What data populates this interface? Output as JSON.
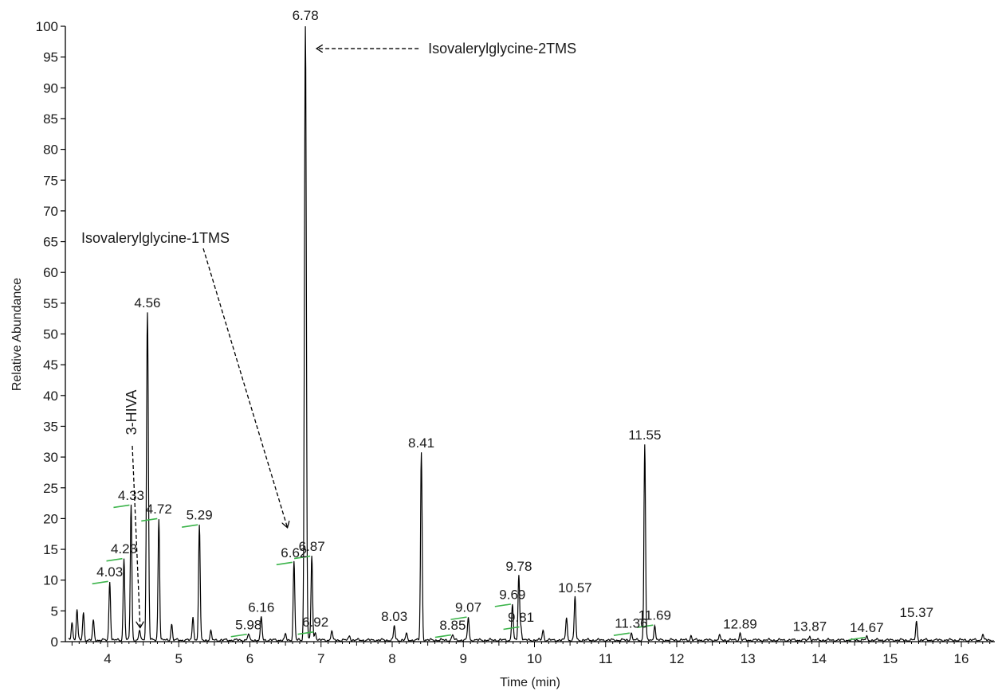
{
  "chart_data": {
    "type": "line",
    "xlabel": "Time (min)",
    "ylabel": "Relative Abundance",
    "xlim": [
      3.4,
      16.5
    ],
    "ylim": [
      0,
      100
    ],
    "x_ticks": [
      4,
      5,
      6,
      7,
      8,
      9,
      10,
      11,
      12,
      13,
      14,
      15,
      16
    ],
    "y_ticks": [
      0,
      5,
      10,
      15,
      20,
      25,
      30,
      35,
      40,
      45,
      50,
      55,
      60,
      65,
      70,
      75,
      80,
      85,
      90,
      95,
      100
    ],
    "line_color": "#000000",
    "integration_mark_color": "#3cb44b",
    "peaks": [
      {
        "x": 3.5,
        "y": 3.0
      },
      {
        "x": 3.57,
        "y": 5.0
      },
      {
        "x": 3.66,
        "y": 4.5
      },
      {
        "x": 3.8,
        "y": 3.2
      },
      {
        "x": 4.03,
        "y": 9.6,
        "label": "4.03",
        "mark": true
      },
      {
        "x": 4.23,
        "y": 13.3,
        "label": "4.23",
        "mark": true
      },
      {
        "x": 4.33,
        "y": 22.0,
        "label": "4.33",
        "mark": true
      },
      {
        "x": 4.45,
        "y": 1.6
      },
      {
        "x": 4.56,
        "y": 53.3,
        "label": "4.56"
      },
      {
        "x": 4.72,
        "y": 19.8,
        "label": "4.72",
        "mark": true
      },
      {
        "x": 4.9,
        "y": 2.6
      },
      {
        "x": 5.2,
        "y": 3.8
      },
      {
        "x": 5.29,
        "y": 18.8,
        "label": "5.29",
        "mark": true
      },
      {
        "x": 5.45,
        "y": 1.4
      },
      {
        "x": 5.98,
        "y": 1.0,
        "label": "5.98",
        "mark": true
      },
      {
        "x": 6.16,
        "y": 3.8,
        "label": "6.16"
      },
      {
        "x": 6.5,
        "y": 0.9
      },
      {
        "x": 6.62,
        "y": 12.7,
        "label": "6.62",
        "mark": true
      },
      {
        "x": 6.78,
        "y": 100.0,
        "label": "6.78"
      },
      {
        "x": 6.87,
        "y": 13.7,
        "label": "6.87",
        "mark": true
      },
      {
        "x": 6.92,
        "y": 1.4,
        "label": "6.92",
        "mark": true
      },
      {
        "x": 7.15,
        "y": 1.5
      },
      {
        "x": 7.4,
        "y": 0.8
      },
      {
        "x": 8.03,
        "y": 2.3,
        "label": "8.03"
      },
      {
        "x": 8.2,
        "y": 1.0
      },
      {
        "x": 8.41,
        "y": 30.5,
        "label": "8.41"
      },
      {
        "x": 8.85,
        "y": 0.9,
        "label": "8.85",
        "mark": true
      },
      {
        "x": 9.07,
        "y": 3.8,
        "label": "9.07",
        "mark": true
      },
      {
        "x": 9.69,
        "y": 5.9,
        "label": "9.69",
        "mark": true
      },
      {
        "x": 9.78,
        "y": 10.5,
        "label": "9.78"
      },
      {
        "x": 9.81,
        "y": 2.2,
        "label": "9.81",
        "mark": true
      },
      {
        "x": 10.12,
        "y": 1.7
      },
      {
        "x": 10.45,
        "y": 3.8
      },
      {
        "x": 10.57,
        "y": 7.0,
        "label": "10.57"
      },
      {
        "x": 11.36,
        "y": 1.2,
        "label": "11.36",
        "mark": true
      },
      {
        "x": 11.55,
        "y": 31.8,
        "label": "11.55"
      },
      {
        "x": 11.69,
        "y": 2.5,
        "label": "11.69",
        "mark": true
      },
      {
        "x": 12.2,
        "y": 0.7
      },
      {
        "x": 12.6,
        "y": 0.7
      },
      {
        "x": 12.89,
        "y": 1.1,
        "label": "12.89"
      },
      {
        "x": 13.87,
        "y": 0.7,
        "label": "13.87"
      },
      {
        "x": 14.67,
        "y": 0.5,
        "label": "14.67",
        "mark": true
      },
      {
        "x": 15.37,
        "y": 3.0,
        "label": "15.37"
      },
      {
        "x": 16.3,
        "y": 1.0
      }
    ],
    "annotations": [
      {
        "text": "Isovalerylglycine-2TMS",
        "target_x": 6.78,
        "target_y": 96.5
      },
      {
        "text": "Isovalerylglycine-1TMS",
        "target_x": 6.55,
        "target_y": 18.0
      },
      {
        "text": "3-HIVA",
        "target_x": 4.48,
        "target_y": 2.0,
        "rotated": true
      }
    ]
  }
}
